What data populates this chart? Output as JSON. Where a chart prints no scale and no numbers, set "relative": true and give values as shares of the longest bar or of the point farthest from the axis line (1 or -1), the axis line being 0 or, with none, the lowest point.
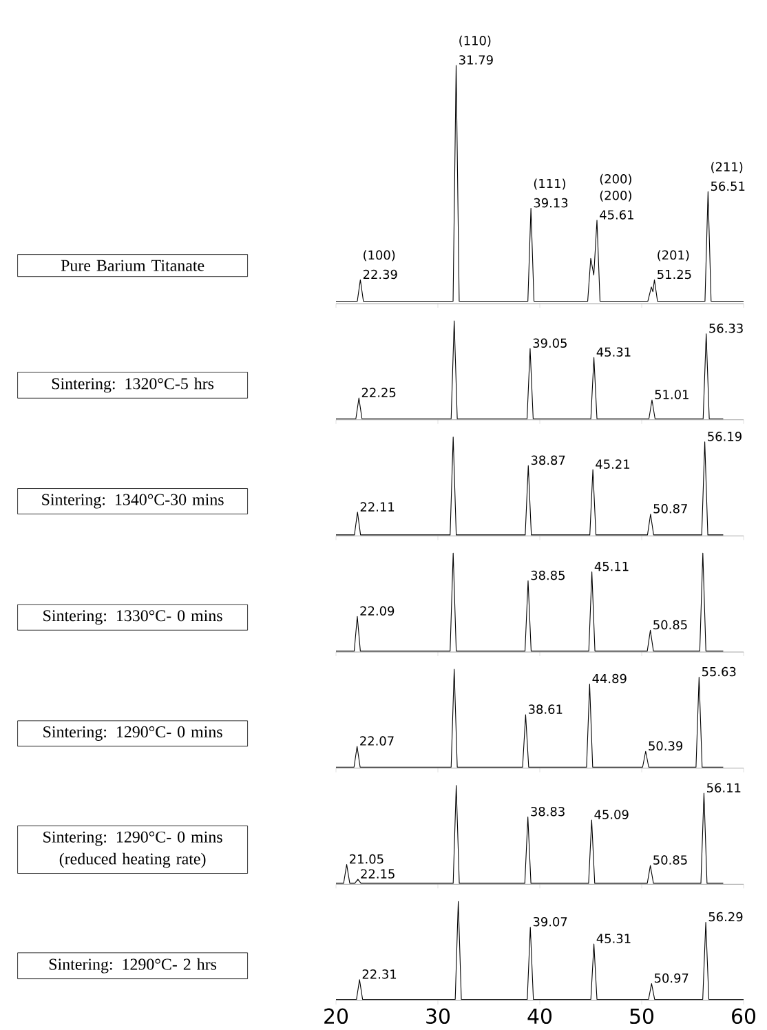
{
  "chart_data": [
    {
      "type": "line",
      "ylabel": "Pure Barium Titanate",
      "color": "#000000",
      "relative": true,
      "xlim": [
        20,
        60
      ],
      "xticks": [
        20,
        30,
        40,
        50,
        60
      ],
      "tick_labels": false,
      "x": [
        20,
        22.09,
        22.39,
        22.69,
        31.49,
        31.79,
        32.09,
        38.83,
        39.13,
        39.43,
        44.7,
        45.0,
        45.3,
        45.61,
        45.91,
        50.6,
        50.95,
        51.1,
        51.25,
        51.55,
        56.21,
        56.51,
        56.81,
        60
      ],
      "values": [
        0.01,
        0.01,
        0.1,
        0.01,
        0.01,
        1,
        0.01,
        0.01,
        0.4,
        0.01,
        0.01,
        0.19,
        0.12,
        0.35,
        0.01,
        0.01,
        0.07,
        0.05,
        0.1,
        0.01,
        0.01,
        0.47,
        0.01,
        0.01
      ],
      "annotations": [
        "(100)",
        {
          "text": "22.39",
          "x": 22.39,
          "y": 0.1
        },
        "(110)",
        {
          "text": "31.79",
          "x": 31.79,
          "y": 1
        },
        "(111)",
        {
          "text": "39.13",
          "x": 39.13,
          "y": 0.4
        },
        "(200)",
        "(200)",
        {
          "text": "45.61",
          "x": 45.61,
          "y": 0.35
        },
        "(201)",
        {
          "text": "51.25",
          "x": 51.25,
          "y": 0.1
        },
        "(211)",
        {
          "text": "56.51",
          "x": 56.51,
          "y": 0.47
        }
      ]
    },
    {
      "type": "line",
      "ylabel": "Sintering: 1320°C-5 hrs",
      "color": "#000000",
      "relative": true,
      "xlim": [
        20,
        60
      ],
      "xticks": [
        20,
        30,
        40,
        50,
        60
      ],
      "tick_labels": false,
      "x": [
        20,
        21.95,
        22.25,
        22.55,
        31.3,
        31.6,
        31.9,
        38.75,
        39.05,
        39.35,
        45.01,
        45.31,
        45.61,
        50.71,
        51.01,
        51.31,
        56.03,
        56.33,
        56.63,
        58
      ],
      "values": [
        0.01,
        0.01,
        0.22,
        0.01,
        0.01,
        1,
        0.01,
        0.01,
        0.72,
        0.01,
        0.01,
        0.63,
        0.01,
        0.01,
        0.2,
        0.01,
        0.01,
        0.87,
        0.01,
        0.01
      ],
      "annotations": [
        {
          "text": "22.25",
          "x": 22.25,
          "y": 0.22
        },
        {
          "text": "39.05",
          "x": 39.05,
          "y": 0.72
        },
        {
          "text": "45.31",
          "x": 45.31,
          "y": 0.63
        },
        {
          "text": "51.01",
          "x": 51.01,
          "y": 0.2
        },
        {
          "text": "56.33",
          "x": 56.33,
          "y": 0.87
        }
      ]
    },
    {
      "type": "line",
      "ylabel": "Sintering: 1340°C-30 mins",
      "color": "#000000",
      "relative": true,
      "xlim": [
        20,
        60
      ],
      "xticks": [
        20,
        30,
        40,
        50,
        60
      ],
      "tick_labels": false,
      "x": [
        20,
        21.81,
        22.11,
        22.41,
        31.2,
        31.5,
        31.8,
        38.57,
        38.87,
        39.17,
        44.91,
        45.21,
        45.51,
        50.57,
        50.87,
        51.17,
        55.89,
        56.19,
        56.49,
        58
      ],
      "values": [
        0.01,
        0.01,
        0.24,
        0.01,
        0.01,
        1,
        0.01,
        0.01,
        0.71,
        0.01,
        0.01,
        0.67,
        0.01,
        0.01,
        0.22,
        0.01,
        0.01,
        0.95,
        0.01,
        0.01
      ],
      "annotations": [
        {
          "text": "22.11",
          "x": 22.11,
          "y": 0.24
        },
        {
          "text": "38.87",
          "x": 38.87,
          "y": 0.71
        },
        {
          "text": "45.21",
          "x": 45.21,
          "y": 0.67
        },
        {
          "text": "50.87",
          "x": 50.87,
          "y": 0.22
        },
        {
          "text": "56.19",
          "x": 56.19,
          "y": 0.95
        }
      ]
    },
    {
      "type": "line",
      "ylabel": "Sintering: 1330°C- 0 mins",
      "color": "#000000",
      "relative": true,
      "xlim": [
        20,
        60
      ],
      "xticks": [
        20,
        30,
        40,
        50,
        60
      ],
      "tick_labels": false,
      "x": [
        20,
        21.79,
        22.09,
        22.39,
        31.2,
        31.5,
        31.8,
        38.55,
        38.85,
        39.15,
        44.81,
        45.11,
        45.41,
        50.55,
        50.85,
        51.15,
        55.7,
        56.0,
        56.3,
        58
      ],
      "values": [
        0.01,
        0.01,
        0.36,
        0.01,
        0.01,
        1,
        0.01,
        0.01,
        0.72,
        0.01,
        0.01,
        0.81,
        0.01,
        0.01,
        0.22,
        0.01,
        0.01,
        1.0,
        0.01,
        0.01
      ],
      "annotations": [
        {
          "text": "22.09",
          "x": 22.09,
          "y": 0.36
        },
        {
          "text": "38.85",
          "x": 38.85,
          "y": 0.72
        },
        {
          "text": "45.11",
          "x": 45.11,
          "y": 0.81
        },
        {
          "text": "50.85",
          "x": 50.85,
          "y": 0.22
        }
      ]
    },
    {
      "type": "line",
      "ylabel": "Sintering: 1290°C- 0 mins",
      "color": "#000000",
      "relative": true,
      "xlim": [
        20,
        60
      ],
      "xticks": [
        20,
        30,
        40,
        50,
        60
      ],
      "tick_labels": false,
      "x": [
        20,
        21.77,
        22.07,
        22.37,
        31.3,
        31.6,
        31.9,
        38.31,
        38.61,
        38.91,
        44.59,
        44.89,
        45.19,
        50.09,
        50.39,
        50.69,
        55.33,
        55.63,
        55.93,
        58
      ],
      "values": [
        0.01,
        0.01,
        0.22,
        0.01,
        0.01,
        1,
        0.01,
        0.01,
        0.54,
        0.01,
        0.01,
        0.85,
        0.01,
        0.01,
        0.17,
        0.01,
        0.01,
        0.92,
        0.01,
        0.01
      ],
      "annotations": [
        {
          "text": "22.07",
          "x": 22.07,
          "y": 0.22
        },
        {
          "text": "38.61",
          "x": 38.61,
          "y": 0.54
        },
        {
          "text": "44.89",
          "x": 44.89,
          "y": 0.85
        },
        {
          "text": "50.39",
          "x": 50.39,
          "y": 0.17
        },
        {
          "text": "55.63",
          "x": 55.63,
          "y": 0.92
        }
      ]
    },
    {
      "type": "line",
      "ylabel": "Sintering: 1290°C- 0 mins (reduced heating rate)",
      "color": "#000000",
      "relative": true,
      "xlim": [
        20,
        60
      ],
      "xticks": [
        20,
        30,
        40,
        50,
        60
      ],
      "tick_labels": false,
      "x": [
        20,
        20.75,
        21.05,
        21.35,
        21.85,
        22.15,
        22.45,
        31.5,
        31.8,
        32.1,
        38.53,
        38.83,
        39.13,
        44.79,
        45.09,
        45.39,
        50.55,
        50.85,
        51.15,
        55.81,
        56.11,
        56.41,
        58
      ],
      "values": [
        0.01,
        0.01,
        0.2,
        0.01,
        0.01,
        0.05,
        0.01,
        0.01,
        1,
        0.01,
        0.01,
        0.68,
        0.01,
        0.01,
        0.65,
        0.01,
        0.01,
        0.19,
        0.01,
        0.01,
        0.92,
        0.01,
        0.01
      ],
      "annotations": [
        {
          "text": "21.05",
          "x": 21.05,
          "y": 0.2
        },
        {
          "text": "22.15",
          "x": 22.15,
          "y": 0.05
        },
        {
          "text": "38.83",
          "x": 38.83,
          "y": 0.68
        },
        {
          "text": "45.09",
          "x": 45.09,
          "y": 0.65
        },
        {
          "text": "50.85",
          "x": 50.85,
          "y": 0.19
        },
        {
          "text": "56.11",
          "x": 56.11,
          "y": 0.92
        }
      ]
    },
    {
      "type": "line",
      "ylabel": "Sintering: 1290°C- 2 hrs",
      "color": "#000000",
      "relative": true,
      "xlim": [
        20,
        60
      ],
      "xticks": [
        20,
        30,
        40,
        50,
        60
      ],
      "tick_labels": "x",
      "x": [
        20,
        22.01,
        22.31,
        22.61,
        31.7,
        32.0,
        32.3,
        38.77,
        39.07,
        39.37,
        45.01,
        45.31,
        45.61,
        50.67,
        50.97,
        51.27,
        55.99,
        56.29,
        56.59,
        60
      ],
      "values": [
        0.01,
        0.01,
        0.21,
        0.01,
        0.01,
        1,
        0.01,
        0.01,
        0.74,
        0.01,
        0.01,
        0.57,
        0.01,
        0.01,
        0.17,
        0.01,
        0.01,
        0.79,
        0.01,
        0.01
      ],
      "annotations": [
        {
          "text": "22.31",
          "x": 22.31,
          "y": 0.21
        },
        {
          "text": "39.07",
          "x": 39.07,
          "y": 0.74
        },
        {
          "text": "45.31",
          "x": 45.31,
          "y": 0.57
        },
        {
          "text": "50.97",
          "x": 50.97,
          "y": 0.17
        },
        {
          "text": "56.29",
          "x": 56.29,
          "y": 0.79
        }
      ]
    }
  ]
}
